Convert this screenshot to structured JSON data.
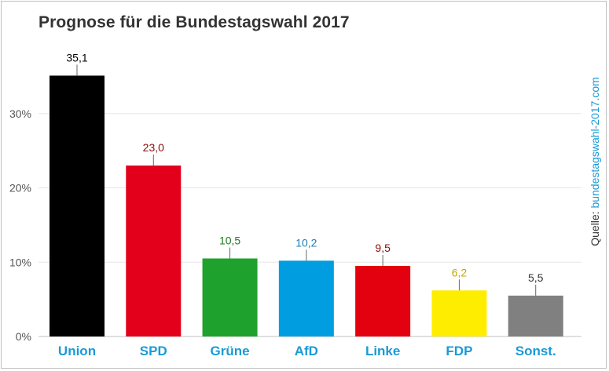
{
  "title": "Prognose für die Bundestagswahl 2017",
  "source": {
    "label": "Quelle:",
    "link": "bundestagswahl-2017.com"
  },
  "chart_data": {
    "type": "bar",
    "title": "Prognose für die Bundestagswahl 2017",
    "xlabel": "",
    "ylabel": "",
    "ylim": [
      0,
      40
    ],
    "yticks": [
      {
        "value": 0,
        "label": "0%"
      },
      {
        "value": 10,
        "label": "10%"
      },
      {
        "value": 20,
        "label": "20%"
      },
      {
        "value": 30,
        "label": "30%"
      }
    ],
    "grid": true,
    "categories": [
      "Union",
      "SPD",
      "Grüne",
      "AfD",
      "Linke",
      "FDP",
      "Sonst."
    ],
    "values": [
      35.1,
      23.0,
      10.5,
      10.2,
      9.5,
      6.2,
      5.5
    ],
    "value_labels": [
      "35,1",
      "23,0",
      "10,5",
      "10,2",
      "9,5",
      "6,2",
      "5,5"
    ],
    "bar_colors": [
      "#000000",
      "#e3001b",
      "#1fa12e",
      "#009ee0",
      "#e3000f",
      "#ffed00",
      "#808080"
    ],
    "label_colors": [
      "#000000",
      "#8b0a0a",
      "#1e7a1e",
      "#1a7fb5",
      "#8b0a0a",
      "#c8a400",
      "#333333"
    ],
    "category_label_color": "#1a9ad6"
  }
}
